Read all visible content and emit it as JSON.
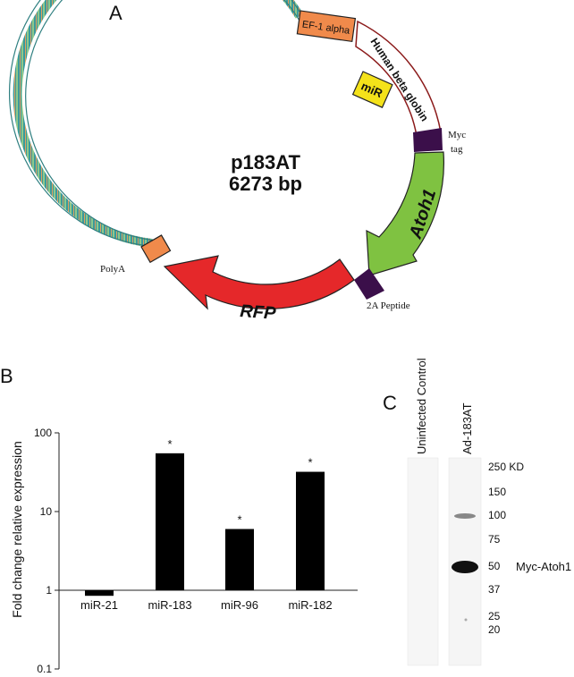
{
  "panel_a": {
    "label": "A",
    "plasmid_name": "p183AT",
    "plasmid_size": "6273 bp",
    "features": {
      "ef1": "EF-1 alpha",
      "hbg": "Human beta globin",
      "mir": "miR",
      "myc_line1": "Myc",
      "myc_line2": "tag",
      "atoh1": "Atoh1",
      "peptide": "2A Peptide",
      "rfp": "RFP",
      "polya": "PolyA"
    },
    "colors": {
      "backbone": "#3a9a9c",
      "ef1": "#f08a4b",
      "hbg_outline": "#8b1a1a",
      "mir": "#f4e21a",
      "myc": "#3b0f4a",
      "atoh1": "#7fc241",
      "rfp": "#e5282a",
      "polya": "#f08a4b"
    }
  },
  "panel_b": {
    "label": "B",
    "chart_data": {
      "type": "bar",
      "categories": [
        "miR-21",
        "miR-183",
        "miR-96",
        "miR-182"
      ],
      "values": [
        0.85,
        55,
        6,
        32
      ],
      "significance": [
        "",
        "*",
        "*",
        "*"
      ],
      "ylabel": "Fold change relative expression",
      "yscale": "log",
      "ylim": [
        0.1,
        100
      ],
      "yticks": [
        "0.1",
        "1",
        "10",
        "100"
      ],
      "bar_color": "#000000"
    }
  },
  "panel_c": {
    "label": "C",
    "lanes": [
      "Uninfected Control",
      "Ad-183AT"
    ],
    "markers": [
      "250 KD",
      "150",
      "100",
      "75",
      "50",
      "37",
      "25",
      "20"
    ],
    "band_label": "Myc-Atoh1"
  }
}
